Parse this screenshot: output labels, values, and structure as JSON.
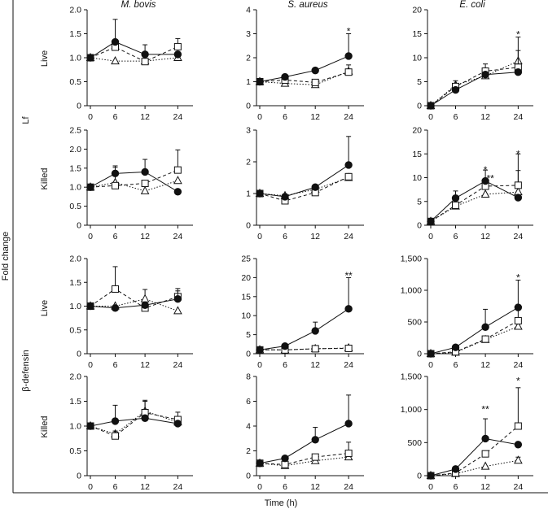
{
  "figure": {
    "y_axis_label": "Fold change",
    "x_axis_label": "Time (h)",
    "column_titles": [
      "M. bovis",
      "S. aureus",
      "E. coli"
    ],
    "group_labels": [
      "Lf",
      "β-defensin"
    ],
    "row_labels": [
      "Live",
      "Killed",
      "Live",
      "Killed"
    ]
  },
  "colors": {
    "ink": "#111111",
    "background": "#ffffff"
  },
  "chart_data": [
    {
      "type": "line",
      "panel": "Lf / Live / M. bovis",
      "x": [
        0,
        6,
        12,
        24
      ],
      "ylim": [
        0,
        2
      ],
      "yticks": [
        "0",
        "0.5",
        "1.0",
        "1.5",
        "2.0"
      ],
      "xticklabels": [
        "0",
        "6",
        "12",
        "24"
      ],
      "series": [
        {
          "name": "filled circle",
          "values": [
            1.0,
            1.33,
            1.07,
            1.07
          ],
          "err": [
            0,
            0.47,
            0,
            0
          ]
        },
        {
          "name": "open square",
          "values": [
            1.0,
            1.22,
            0.92,
            1.23
          ],
          "err": [
            0,
            0.1,
            0.35,
            0.17
          ]
        },
        {
          "name": "open triangle",
          "values": [
            1.0,
            0.93,
            0.93,
            1.0
          ],
          "err": [
            0,
            0,
            0,
            0
          ]
        }
      ],
      "annotations": []
    },
    {
      "type": "line",
      "panel": "Lf / Live / S. aureus",
      "x": [
        0,
        6,
        12,
        24
      ],
      "ylim": [
        0,
        4
      ],
      "yticks": [
        "0",
        "1",
        "2",
        "3",
        "4"
      ],
      "xticklabels": [
        "0",
        "6",
        "12",
        "24"
      ],
      "series": [
        {
          "name": "filled circle",
          "values": [
            1.0,
            1.2,
            1.47,
            2.07
          ],
          "err": [
            0,
            0,
            0,
            0.93
          ]
        },
        {
          "name": "open square",
          "values": [
            1.0,
            1.07,
            0.97,
            1.4
          ],
          "err": [
            0,
            0,
            0,
            0.3
          ]
        },
        {
          "name": "open triangle",
          "values": [
            1.0,
            0.93,
            0.87,
            1.43
          ],
          "err": [
            0,
            0,
            0,
            0
          ]
        }
      ],
      "annotations": [
        {
          "text": "*",
          "x": 24,
          "y": 3.1
        }
      ]
    },
    {
      "type": "line",
      "panel": "Lf / Live / E. coli",
      "x": [
        0,
        6,
        12,
        24
      ],
      "ylim": [
        0,
        20
      ],
      "yticks": [
        "0",
        "5",
        "10",
        "15",
        "20"
      ],
      "xticklabels": [
        "0",
        "6",
        "12",
        "24"
      ],
      "series": [
        {
          "name": "filled circle",
          "values": [
            0,
            3.3,
            6.5,
            7.0
          ],
          "err": [
            0,
            0,
            0,
            0
          ]
        },
        {
          "name": "open square",
          "values": [
            0,
            4.0,
            7.2,
            8.0
          ],
          "err": [
            0,
            1.2,
            1.5,
            3.5
          ]
        },
        {
          "name": "open triangle",
          "values": [
            0,
            4.3,
            6.2,
            9.3
          ],
          "err": [
            0,
            0,
            0,
            5.0
          ]
        }
      ],
      "annotations": [
        {
          "text": "*",
          "x": 24,
          "y": 14.8
        }
      ]
    },
    {
      "type": "line",
      "panel": "Lf / Killed / M. bovis",
      "x": [
        0,
        6,
        12,
        24
      ],
      "ylim": [
        0,
        2.5
      ],
      "yticks": [
        "0",
        "0.5",
        "1.0",
        "1.5",
        "2.0",
        "2.5"
      ],
      "xticklabels": [
        "0",
        "6",
        "12",
        "24"
      ],
      "series": [
        {
          "name": "filled circle",
          "values": [
            1.0,
            1.36,
            1.4,
            0.88
          ],
          "err": [
            0,
            0.2,
            0.33,
            0
          ]
        },
        {
          "name": "open square",
          "values": [
            1.0,
            1.04,
            1.1,
            1.45
          ],
          "err": [
            0,
            0,
            0,
            0.53
          ]
        },
        {
          "name": "open triangle",
          "values": [
            1.0,
            1.12,
            0.9,
            1.17
          ],
          "err": [
            0,
            0.4,
            0,
            0
          ]
        }
      ],
      "annotations": []
    },
    {
      "type": "line",
      "panel": "Lf / Killed / S. aureus",
      "x": [
        0,
        6,
        12,
        24
      ],
      "ylim": [
        0,
        3
      ],
      "yticks": [
        "0",
        "1",
        "2",
        "3"
      ],
      "xticklabels": [
        "0",
        "6",
        "12",
        "24"
      ],
      "series": [
        {
          "name": "filled circle",
          "values": [
            1.0,
            0.9,
            1.2,
            1.9
          ],
          "err": [
            0,
            0,
            0,
            0.9
          ]
        },
        {
          "name": "open square",
          "values": [
            1.0,
            0.77,
            1.03,
            1.53
          ],
          "err": [
            0,
            0,
            0,
            0.1
          ]
        },
        {
          "name": "open triangle",
          "values": [
            1.0,
            0.93,
            1.13,
            1.5
          ],
          "err": [
            0,
            0,
            0,
            0
          ]
        }
      ],
      "annotations": []
    },
    {
      "type": "line",
      "panel": "Lf / Killed / E. coli",
      "x": [
        0,
        6,
        12,
        24
      ],
      "ylim": [
        0,
        20
      ],
      "yticks": [
        "0",
        "5",
        "10",
        "15",
        "20"
      ],
      "xticklabels": [
        "0",
        "6",
        "12",
        "24"
      ],
      "series": [
        {
          "name": "filled circle",
          "values": [
            0.8,
            5.7,
            9.3,
            5.8
          ],
          "err": [
            0,
            1.5,
            2.3,
            0
          ]
        },
        {
          "name": "open square",
          "values": [
            0.8,
            4.2,
            8.2,
            8.4
          ],
          "err": [
            0,
            0,
            1.5,
            6.6
          ]
        },
        {
          "name": "open triangle",
          "values": [
            0.8,
            4.0,
            6.5,
            7.0
          ],
          "err": [
            0,
            0,
            0,
            4.5
          ]
        }
      ],
      "annotations": [
        {
          "text": "*",
          "x": 12,
          "y": 11.6
        },
        {
          "text": "**",
          "x": 13.8,
          "y": 9.8
        },
        {
          "text": "*",
          "x": 24,
          "y": 15.0
        }
      ]
    },
    {
      "type": "line",
      "panel": "β-defensin / Live / M. bovis",
      "x": [
        0,
        6,
        12,
        24
      ],
      "ylim": [
        0,
        2
      ],
      "yticks": [
        "0",
        "0.5",
        "1.0",
        "1.5",
        "2.0"
      ],
      "xticklabels": [
        "0",
        "6",
        "12",
        "24"
      ],
      "series": [
        {
          "name": "filled circle",
          "values": [
            1.0,
            0.96,
            1.02,
            1.15
          ],
          "err": [
            0,
            0,
            0,
            0.17
          ]
        },
        {
          "name": "open square",
          "values": [
            1.0,
            1.36,
            0.96,
            1.2
          ],
          "err": [
            0,
            0.47,
            0,
            0.17
          ]
        },
        {
          "name": "open triangle",
          "values": [
            1.0,
            1.0,
            1.15,
            0.9
          ],
          "err": [
            0,
            0,
            0.2,
            0
          ]
        }
      ],
      "annotations": []
    },
    {
      "type": "line",
      "panel": "β-defensin / Live / S. aureus",
      "x": [
        0,
        6,
        12,
        24
      ],
      "ylim": [
        0,
        25
      ],
      "yticks": [
        "0",
        "5",
        "10",
        "15",
        "20",
        "25"
      ],
      "xticklabels": [
        "0",
        "6",
        "12",
        "24"
      ],
      "series": [
        {
          "name": "filled circle",
          "values": [
            1.0,
            2.0,
            6.0,
            11.8
          ],
          "err": [
            0,
            0.4,
            2.3,
            8.2
          ]
        },
        {
          "name": "open square",
          "values": [
            1.0,
            1.0,
            1.3,
            1.4
          ],
          "err": [
            0,
            0,
            0,
            0
          ]
        },
        {
          "name": "open triangle",
          "values": [
            1.0,
            1.0,
            1.3,
            1.5
          ],
          "err": [
            0,
            0,
            0,
            0
          ]
        }
      ],
      "annotations": [
        {
          "text": "**",
          "x": 24,
          "y": 20.5
        }
      ]
    },
    {
      "type": "line",
      "panel": "β-defensin / Live / E. coli",
      "x": [
        0,
        6,
        12,
        24
      ],
      "ylim": [
        0,
        1500
      ],
      "yticks": [
        "0",
        "500",
        "1,000",
        "1,500"
      ],
      "xticklabels": [
        "0",
        "6",
        "12",
        "24"
      ],
      "series": [
        {
          "name": "filled circle",
          "values": [
            0,
            100,
            420,
            730
          ],
          "err": [
            0,
            0,
            280,
            430
          ]
        },
        {
          "name": "open square",
          "values": [
            0,
            30,
            230,
            520
          ],
          "err": [
            0,
            0,
            0,
            250
          ]
        },
        {
          "name": "open triangle",
          "values": [
            0,
            20,
            220,
            430
          ],
          "err": [
            0,
            0,
            0,
            90
          ]
        }
      ],
      "annotations": [
        {
          "text": "*",
          "x": 24,
          "y": 1200
        }
      ]
    },
    {
      "type": "line",
      "panel": "β-defensin / Killed / M. bovis",
      "x": [
        0,
        6,
        12,
        24
      ],
      "ylim": [
        0,
        2
      ],
      "yticks": [
        "0",
        "0.5",
        "1.0",
        "1.5",
        "2.0"
      ],
      "xticklabels": [
        "0",
        "6",
        "12",
        "24"
      ],
      "series": [
        {
          "name": "filled circle",
          "values": [
            1.0,
            1.1,
            1.16,
            1.05
          ],
          "err": [
            0,
            0.32,
            0,
            0
          ]
        },
        {
          "name": "open square",
          "values": [
            1.0,
            0.8,
            1.27,
            1.13
          ],
          "err": [
            0,
            0.1,
            0.25,
            0.15
          ]
        },
        {
          "name": "open triangle",
          "values": [
            1.0,
            0.84,
            1.3,
            1.08
          ],
          "err": [
            0,
            0,
            0.2,
            0
          ]
        }
      ],
      "annotations": []
    },
    {
      "type": "line",
      "panel": "β-defensin / Killed / S. aureus",
      "x": [
        0,
        6,
        12,
        24
      ],
      "ylim": [
        0,
        8
      ],
      "yticks": [
        "0",
        "2",
        "4",
        "6",
        "8"
      ],
      "xticklabels": [
        "0",
        "6",
        "12",
        "24"
      ],
      "series": [
        {
          "name": "filled circle",
          "values": [
            1.0,
            1.4,
            2.9,
            4.2
          ],
          "err": [
            0,
            0,
            1.0,
            2.3
          ]
        },
        {
          "name": "open square",
          "values": [
            1.0,
            0.9,
            1.5,
            1.8
          ],
          "err": [
            0,
            0,
            0,
            0.9
          ]
        },
        {
          "name": "open triangle",
          "values": [
            1.0,
            0.8,
            1.2,
            1.5
          ],
          "err": [
            0,
            0,
            0,
            0
          ]
        }
      ],
      "annotations": []
    },
    {
      "type": "line",
      "panel": "β-defensin / Killed / E. coli",
      "x": [
        0,
        6,
        12,
        24
      ],
      "ylim": [
        0,
        1500
      ],
      "yticks": [
        "0",
        "500",
        "1,000",
        "1,500"
      ],
      "xticklabels": [
        "0",
        "6",
        "12",
        "24"
      ],
      "series": [
        {
          "name": "filled circle",
          "values": [
            0,
            100,
            560,
            470
          ],
          "err": [
            0,
            0,
            300,
            0
          ]
        },
        {
          "name": "open square",
          "values": [
            0,
            40,
            330,
            750
          ],
          "err": [
            0,
            0,
            0,
            580
          ]
        },
        {
          "name": "open triangle",
          "values": [
            0,
            30,
            140,
            230
          ],
          "err": [
            0,
            0,
            0,
            50
          ]
        }
      ],
      "annotations": [
        {
          "text": "**",
          "x": 12,
          "y": 1000
        },
        {
          "text": "*",
          "x": 24,
          "y": 1430
        }
      ]
    }
  ]
}
